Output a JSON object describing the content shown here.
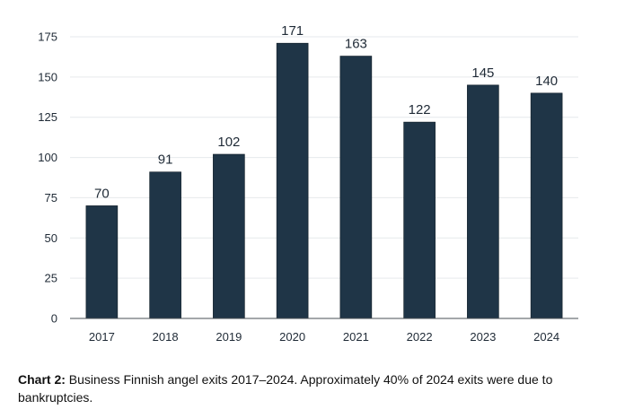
{
  "chart_data": {
    "type": "bar",
    "categories": [
      "2017",
      "2018",
      "2019",
      "2020",
      "2021",
      "2022",
      "2023",
      "2024"
    ],
    "values": [
      70,
      91,
      102,
      171,
      163,
      122,
      145,
      140
    ],
    "data_labels": [
      "70",
      "91",
      "102",
      "171",
      "163",
      "122",
      "145",
      "140"
    ],
    "title": "",
    "xlabel": "",
    "ylabel": "",
    "ylim": [
      0,
      175
    ],
    "yticks": [
      0,
      25,
      50,
      75,
      100,
      125,
      150,
      175
    ],
    "grid": true,
    "legend": "none",
    "bar_color": "#1f3547"
  },
  "caption": {
    "label": "Chart 2:",
    "text": "Business Finnish angel exits 2017–2024. Approximately 40% of 2024 exits were due to bankruptcies."
  }
}
